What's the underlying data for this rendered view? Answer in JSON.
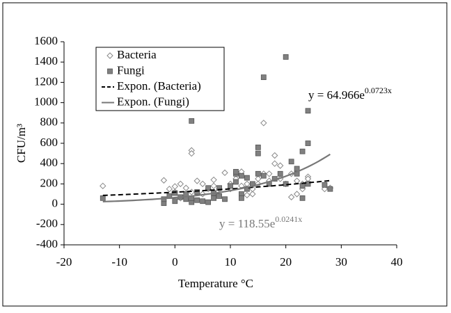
{
  "chart_data": {
    "type": "scatter",
    "xlabel": "Temperature °C",
    "ylabel": "CFU/m³",
    "xlim": [
      -20,
      40
    ],
    "xticks": [
      -20,
      -10,
      0,
      10,
      20,
      30,
      40
    ],
    "ylim": [
      -400,
      1600
    ],
    "yticks": [
      -400,
      -200,
      0,
      200,
      400,
      600,
      800,
      1000,
      1200,
      1400,
      1600
    ],
    "legend": "top-left",
    "series": [
      {
        "name": "Bacteria",
        "color": "#888888",
        "marker": "diamond",
        "x": [
          -13,
          -2,
          -1,
          0,
          1,
          2,
          3,
          3,
          3,
          4,
          5,
          6,
          7,
          7,
          8,
          9,
          10,
          11,
          12,
          12,
          13,
          14,
          14,
          15,
          15,
          16,
          16,
          17,
          17,
          18,
          18,
          19,
          19,
          20,
          21,
          22,
          22,
          23,
          23,
          24,
          24,
          27,
          28,
          2,
          1,
          0,
          5,
          10,
          13,
          21
        ],
        "values": [
          180,
          235,
          150,
          175,
          200,
          160,
          530,
          500,
          120,
          230,
          100,
          150,
          240,
          180,
          150,
          310,
          200,
          250,
          320,
          180,
          200,
          100,
          150,
          250,
          200,
          800,
          300,
          230,
          300,
          480,
          400,
          380,
          250,
          200,
          300,
          230,
          100,
          200,
          150,
          270,
          250,
          150,
          160,
          80,
          60,
          120,
          200,
          150,
          90,
          70
        ]
      },
      {
        "name": "Fungi",
        "color": "#808080",
        "marker": "square",
        "x": [
          -13,
          -2,
          -2,
          -1,
          0,
          0,
          1,
          2,
          2,
          3,
          3,
          3,
          4,
          4,
          5,
          6,
          6,
          7,
          7,
          8,
          9,
          10,
          11,
          11,
          12,
          12,
          12,
          13,
          14,
          15,
          15,
          15,
          16,
          16,
          17,
          18,
          19,
          20,
          20,
          21,
          22,
          22,
          23,
          23,
          23,
          24,
          24,
          24,
          27,
          28,
          11,
          13,
          8
        ],
        "values": [
          60,
          10,
          50,
          80,
          30,
          110,
          70,
          50,
          100,
          820,
          20,
          60,
          40,
          120,
          30,
          20,
          160,
          60,
          110,
          160,
          50,
          180,
          300,
          220,
          100,
          60,
          280,
          150,
          200,
          560,
          500,
          300,
          1250,
          280,
          200,
          250,
          300,
          1450,
          200,
          420,
          350,
          300,
          520,
          180,
          60,
          920,
          600,
          200,
          190,
          150,
          320,
          260,
          80
        ]
      }
    ],
    "trendlines": [
      {
        "name": "Expon. (Bacteria)",
        "color": "#000000",
        "dash": true,
        "a": 118.55,
        "b": 0.0241,
        "xrange": [
          -13,
          28
        ],
        "equation_parts": [
          "y = ",
          "e",
          "x"
        ]
      },
      {
        "name": "Expon. (Fungi)",
        "color": "#777777",
        "dash": false,
        "a": 64.966,
        "b": 0.0723,
        "xrange": [
          -13,
          28
        ],
        "equation_parts": [
          "y = ",
          "e",
          "x"
        ]
      }
    ]
  }
}
